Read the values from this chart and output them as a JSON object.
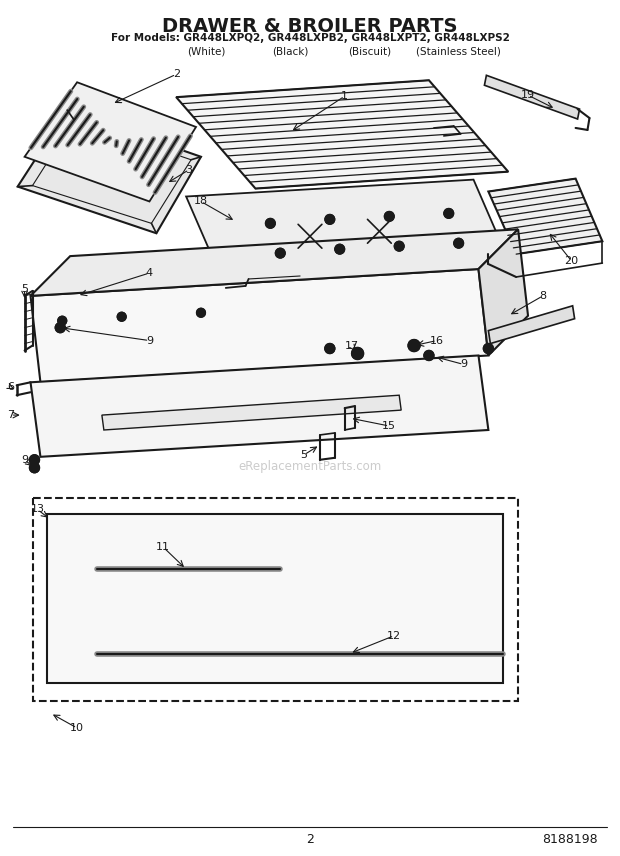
{
  "title": "DRAWER & BROILER PARTS",
  "subtitle": "For Models: GR448LXPQ2, GR448LXPB2, GR448LXPT2, GR448LXPS2",
  "subtitle_col1": "(White)",
  "subtitle_col2": "(Black)",
  "subtitle_col3": "(Biscuit)",
  "subtitle_col4": "(Stainless Steel)",
  "page_number": "2",
  "part_number": "8188198",
  "watermark": "eReplacementParts.com",
  "background_color": "#ffffff",
  "line_color": "#1a1a1a",
  "fig_width": 6.2,
  "fig_height": 8.56,
  "dpi": 100
}
